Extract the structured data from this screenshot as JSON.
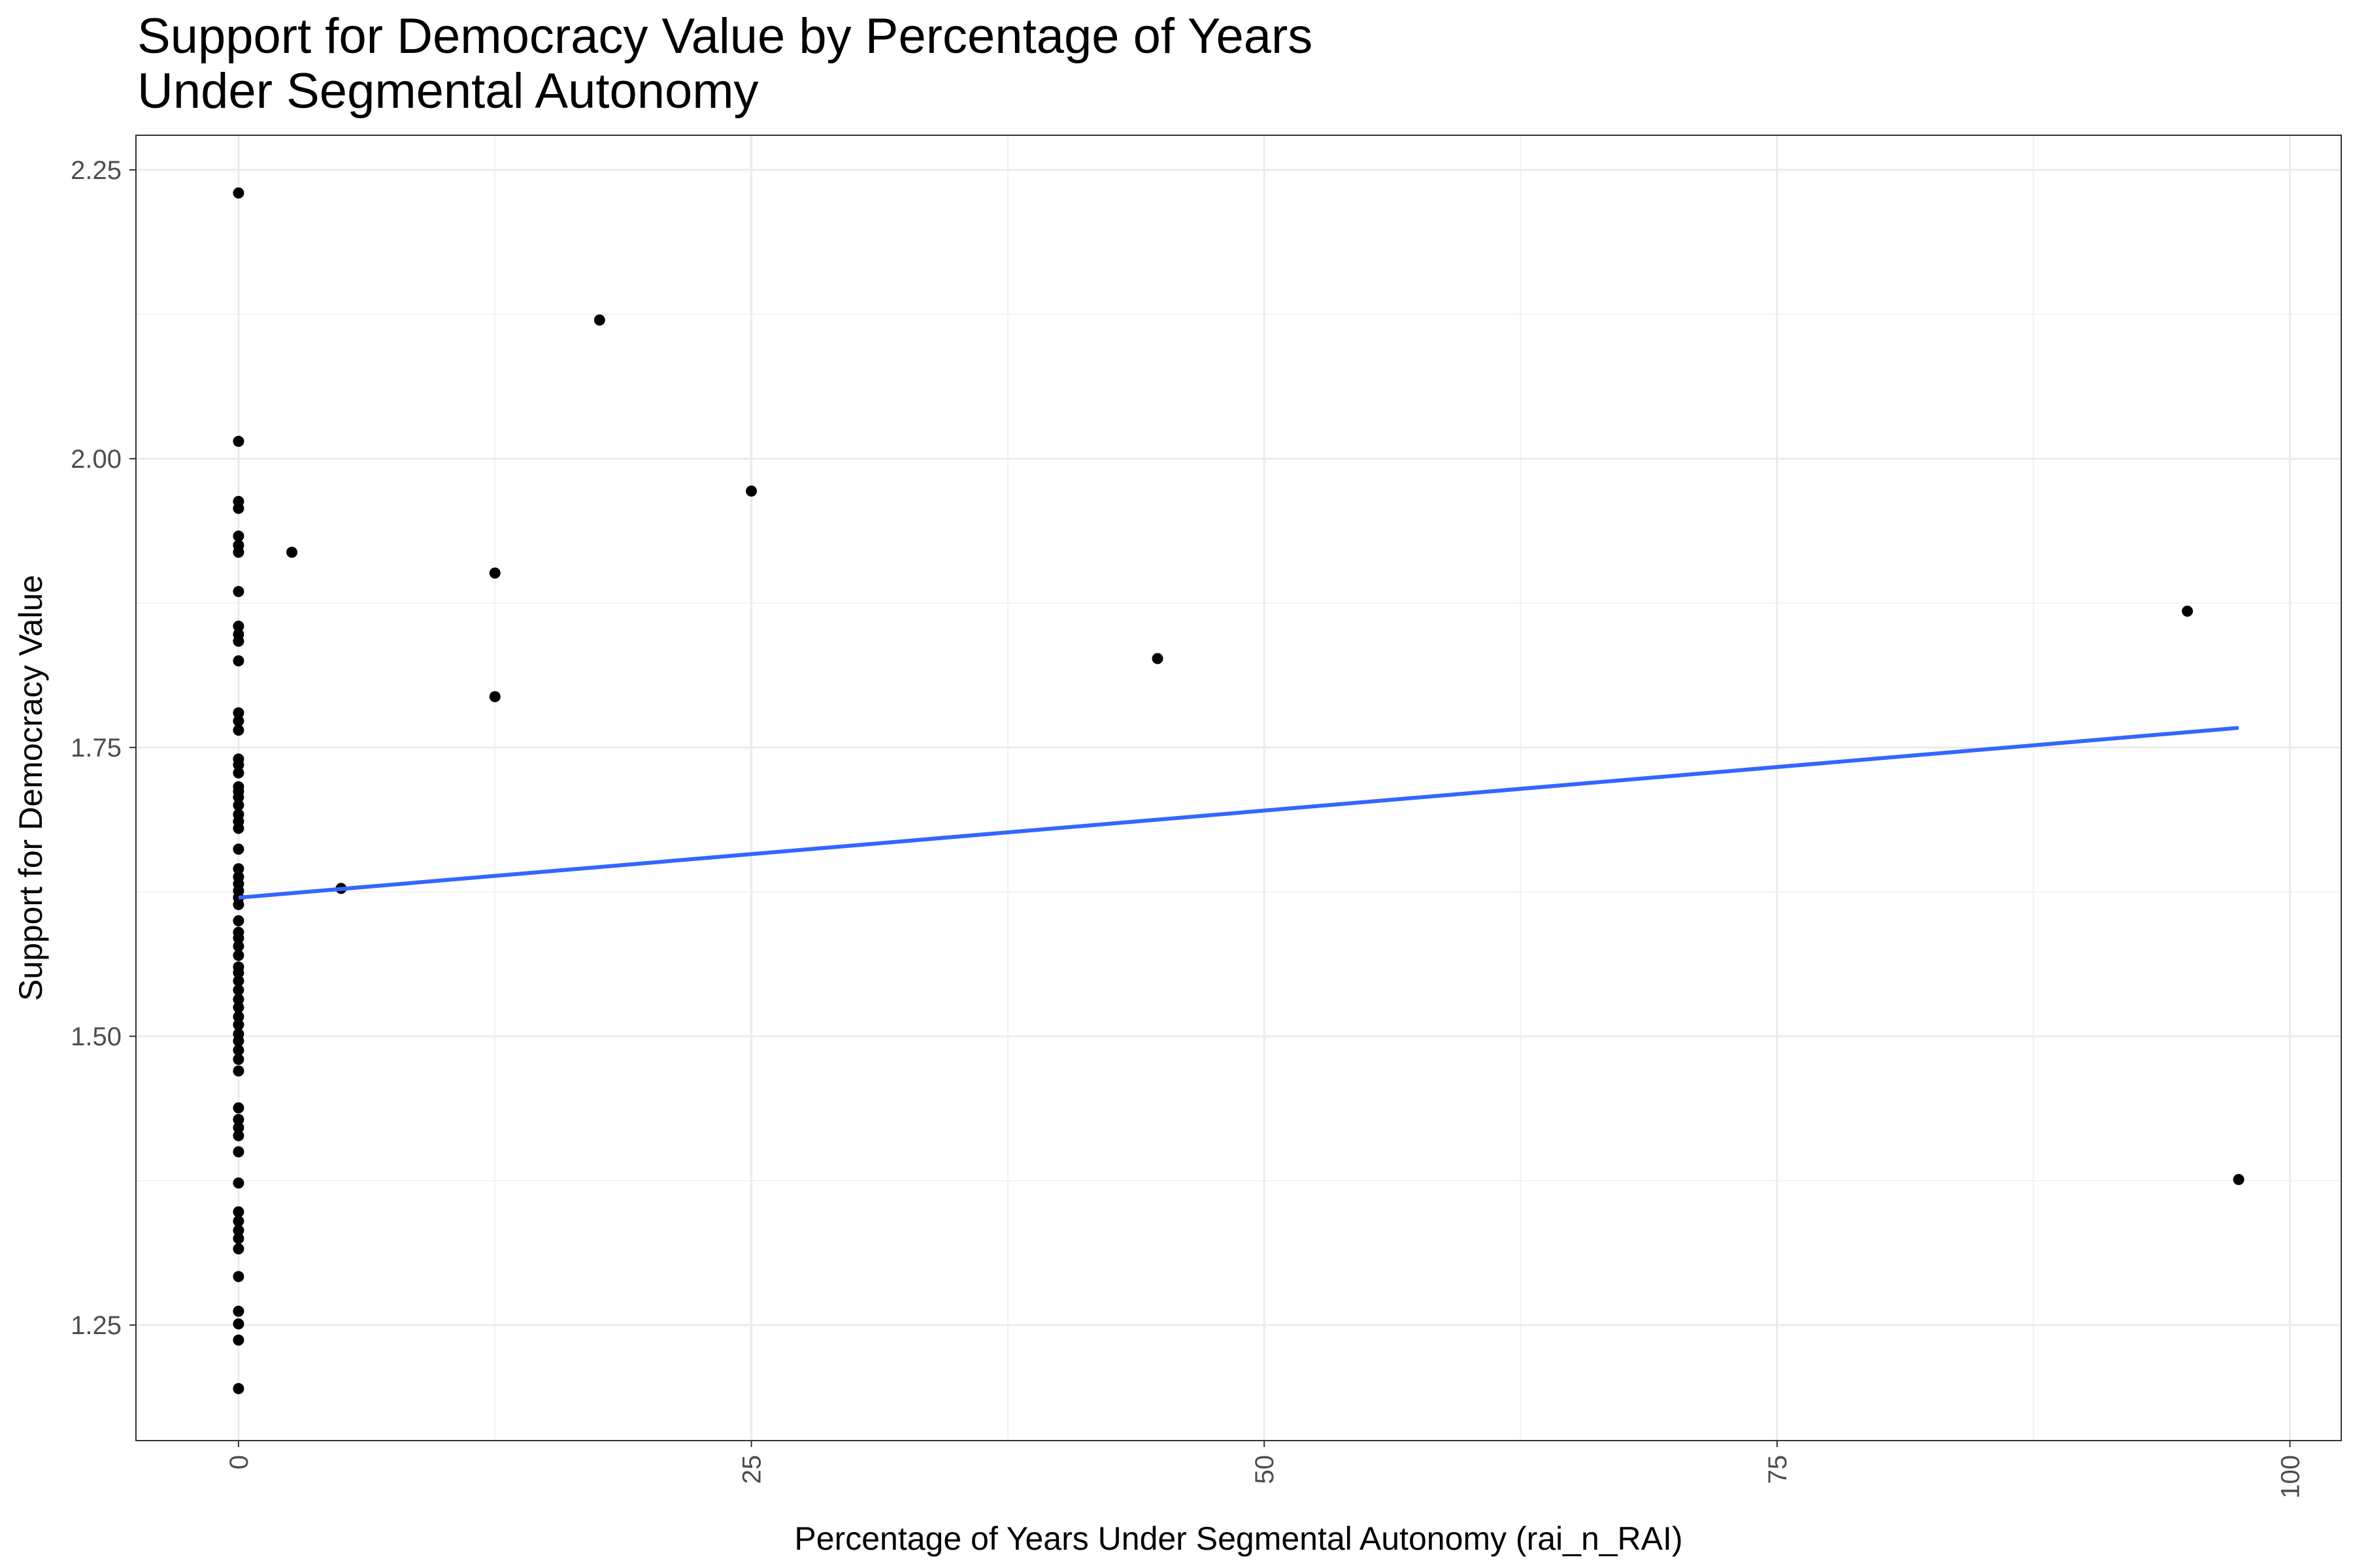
{
  "chart_data": {
    "type": "scatter",
    "title_lines": [
      "Support for Democracy Value by Percentage of Years",
      "Under Segmental Autonomy"
    ],
    "xlabel": "Percentage of Years Under Segmental Autonomy (rai_n_RAI)",
    "ylabel": "Support for Democracy Value",
    "xlim": [
      -5,
      102.5
    ],
    "ylim": [
      1.15,
      2.28
    ],
    "x_ticks": [
      0,
      25,
      50,
      75,
      100
    ],
    "x_tick_labels": [
      "0",
      "25",
      "50",
      "75",
      "100"
    ],
    "y_ticks": [
      1.25,
      1.5,
      1.75,
      2.0,
      2.25
    ],
    "y_tick_labels": [
      "1.25",
      "1.50",
      "1.75",
      "2.00",
      "2.25"
    ],
    "x_tick_rotation": "vertical",
    "grid": true,
    "theme": "bw",
    "point_color": "#000000",
    "line_color": "#3366ff",
    "points": [
      {
        "x": 0,
        "y": 2.23
      },
      {
        "x": 0,
        "y": 2.015
      },
      {
        "x": 0,
        "y": 1.963
      },
      {
        "x": 0,
        "y": 1.957
      },
      {
        "x": 0,
        "y": 1.933
      },
      {
        "x": 0,
        "y": 1.925
      },
      {
        "x": 0,
        "y": 1.919
      },
      {
        "x": 0,
        "y": 1.885
      },
      {
        "x": 0,
        "y": 1.855
      },
      {
        "x": 0,
        "y": 1.848
      },
      {
        "x": 0,
        "y": 1.842
      },
      {
        "x": 0,
        "y": 1.825
      },
      {
        "x": 0,
        "y": 1.78
      },
      {
        "x": 0,
        "y": 1.773
      },
      {
        "x": 0,
        "y": 1.765
      },
      {
        "x": 0,
        "y": 1.74
      },
      {
        "x": 0,
        "y": 1.735
      },
      {
        "x": 0,
        "y": 1.728
      },
      {
        "x": 0,
        "y": 1.716
      },
      {
        "x": 0,
        "y": 1.712
      },
      {
        "x": 0,
        "y": 1.707
      },
      {
        "x": 0,
        "y": 1.7
      },
      {
        "x": 0,
        "y": 1.692
      },
      {
        "x": 0,
        "y": 1.686
      },
      {
        "x": 0,
        "y": 1.68
      },
      {
        "x": 0,
        "y": 1.662
      },
      {
        "x": 0,
        "y": 1.645
      },
      {
        "x": 0,
        "y": 1.638
      },
      {
        "x": 0,
        "y": 1.632
      },
      {
        "x": 0,
        "y": 1.626
      },
      {
        "x": 0,
        "y": 1.62
      },
      {
        "x": 0,
        "y": 1.614
      },
      {
        "x": 0,
        "y": 1.6
      },
      {
        "x": 0,
        "y": 1.59
      },
      {
        "x": 0,
        "y": 1.585
      },
      {
        "x": 0,
        "y": 1.578
      },
      {
        "x": 0,
        "y": 1.57
      },
      {
        "x": 0,
        "y": 1.56
      },
      {
        "x": 0,
        "y": 1.555
      },
      {
        "x": 0,
        "y": 1.548
      },
      {
        "x": 0,
        "y": 1.54
      },
      {
        "x": 0,
        "y": 1.532
      },
      {
        "x": 0,
        "y": 1.525
      },
      {
        "x": 0,
        "y": 1.517
      },
      {
        "x": 0,
        "y": 1.51
      },
      {
        "x": 0,
        "y": 1.502
      },
      {
        "x": 0,
        "y": 1.496
      },
      {
        "x": 0,
        "y": 1.488
      },
      {
        "x": 0,
        "y": 1.48
      },
      {
        "x": 0,
        "y": 1.47
      },
      {
        "x": 0,
        "y": 1.438
      },
      {
        "x": 0,
        "y": 1.428
      },
      {
        "x": 0,
        "y": 1.421
      },
      {
        "x": 0,
        "y": 1.414
      },
      {
        "x": 0,
        "y": 1.4
      },
      {
        "x": 0,
        "y": 1.373
      },
      {
        "x": 0,
        "y": 1.348
      },
      {
        "x": 0,
        "y": 1.34
      },
      {
        "x": 0,
        "y": 1.332
      },
      {
        "x": 0,
        "y": 1.325
      },
      {
        "x": 0,
        "y": 1.316
      },
      {
        "x": 0,
        "y": 1.292
      },
      {
        "x": 0,
        "y": 1.262
      },
      {
        "x": 0,
        "y": 1.251
      },
      {
        "x": 0,
        "y": 1.237
      },
      {
        "x": 0,
        "y": 1.195
      },
      {
        "x": 2.6,
        "y": 1.919
      },
      {
        "x": 5,
        "y": 1.628
      },
      {
        "x": 12.5,
        "y": 1.901
      },
      {
        "x": 12.5,
        "y": 1.794
      },
      {
        "x": 17.6,
        "y": 2.12
      },
      {
        "x": 25,
        "y": 1.972
      },
      {
        "x": 44.8,
        "y": 1.827
      },
      {
        "x": 95,
        "y": 1.868
      },
      {
        "x": 97.5,
        "y": 1.376
      }
    ],
    "fit_line": {
      "x": [
        0,
        97.5
      ],
      "y": [
        1.62,
        1.767
      ]
    }
  }
}
